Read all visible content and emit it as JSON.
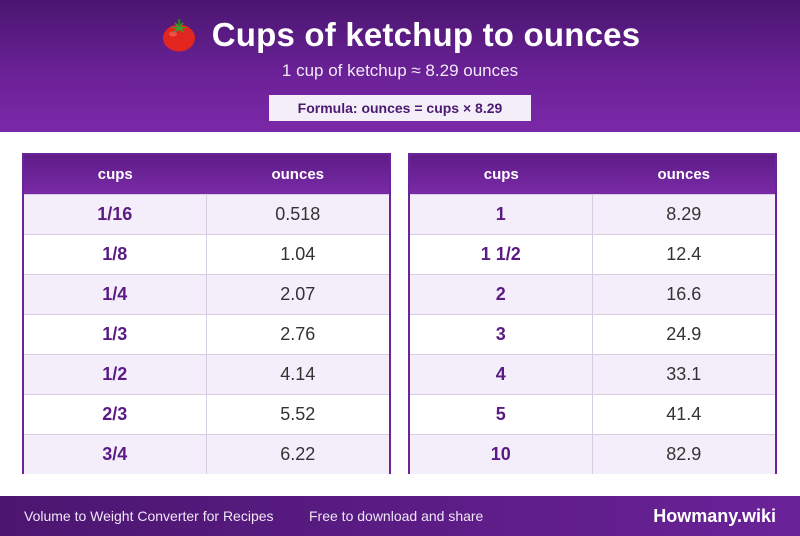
{
  "header": {
    "title": "Cups of ketchup to ounces",
    "icon": "tomato-icon",
    "subtitle": "1 cup of ketchup ≈ 8.29 ounces",
    "formula": "Formula: ounces = cups × 8.29"
  },
  "tables": {
    "left": {
      "col1": "cups",
      "col2": "ounces",
      "rows": [
        {
          "cups": "1/16",
          "ounces": "0.518"
        },
        {
          "cups": "1/8",
          "ounces": "1.04"
        },
        {
          "cups": "1/4",
          "ounces": "2.07"
        },
        {
          "cups": "1/3",
          "ounces": "2.76"
        },
        {
          "cups": "1/2",
          "ounces": "4.14"
        },
        {
          "cups": "2/3",
          "ounces": "5.52"
        },
        {
          "cups": "3/4",
          "ounces": "6.22"
        }
      ]
    },
    "right": {
      "col1": "cups",
      "col2": "ounces",
      "rows": [
        {
          "cups": "1",
          "ounces": "8.29"
        },
        {
          "cups": "1 1/2",
          "ounces": "12.4"
        },
        {
          "cups": "2",
          "ounces": "16.6"
        },
        {
          "cups": "3",
          "ounces": "24.9"
        },
        {
          "cups": "4",
          "ounces": "33.1"
        },
        {
          "cups": "5",
          "ounces": "41.4"
        },
        {
          "cups": "10",
          "ounces": "82.9"
        }
      ]
    }
  },
  "footer": {
    "left": "Volume to Weight Converter for Recipes",
    "middle": "Free to download and share",
    "brand": "Howmany.wiki"
  },
  "colors": {
    "accent": "#6a2196",
    "header_dark": "#4a1670",
    "row_alt": "#f3eefa",
    "cups_text": "#5a1b84"
  }
}
